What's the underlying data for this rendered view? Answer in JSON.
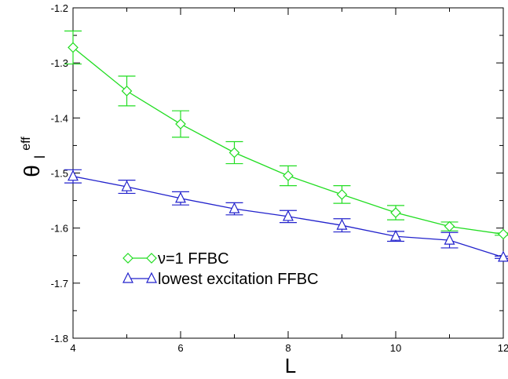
{
  "chart_data": {
    "type": "line",
    "xlabel": "L",
    "ylabel": {
      "base": "θ",
      "subscript": "l",
      "superscript": "eff"
    },
    "xlim": [
      4,
      12
    ],
    "ylim": [
      -1.8,
      -1.2
    ],
    "xticks": [
      4,
      6,
      8,
      10,
      12
    ],
    "xtick_labels": [
      "4",
      "6",
      "8",
      "10",
      "12"
    ],
    "yticks": [
      -1.8,
      -1.7,
      -1.6,
      -1.5,
      -1.4,
      -1.3,
      -1.2
    ],
    "ytick_labels": [
      "-1.8",
      "-1.7",
      "-1.6",
      "-1.5",
      "-1.4",
      "-1.3",
      "-1.2"
    ],
    "legend_position": "lower-left",
    "grid": false,
    "series": [
      {
        "name": "ν=1 FFBC",
        "color": "#22dd22",
        "marker": "diamond",
        "x": [
          4,
          5,
          6,
          7,
          8,
          9,
          10,
          11,
          12
        ],
        "y": [
          -1.272,
          -1.351,
          -1.411,
          -1.463,
          -1.505,
          -1.539,
          -1.572,
          -1.597,
          -1.611
        ],
        "err": [
          0.03,
          0.027,
          0.024,
          0.02,
          0.018,
          0.016,
          0.013,
          0.008,
          0.002
        ]
      },
      {
        "name": "lowest excitation FFBC",
        "color": "#2222cc",
        "marker": "triangle",
        "x": [
          4,
          5,
          6,
          7,
          8,
          9,
          10,
          11,
          12
        ],
        "y": [
          -1.506,
          -1.525,
          -1.546,
          -1.565,
          -1.579,
          -1.595,
          -1.615,
          -1.622,
          -1.653
        ],
        "err": [
          0.012,
          0.012,
          0.012,
          0.011,
          0.011,
          0.012,
          0.009,
          0.014,
          0.002
        ]
      }
    ]
  }
}
